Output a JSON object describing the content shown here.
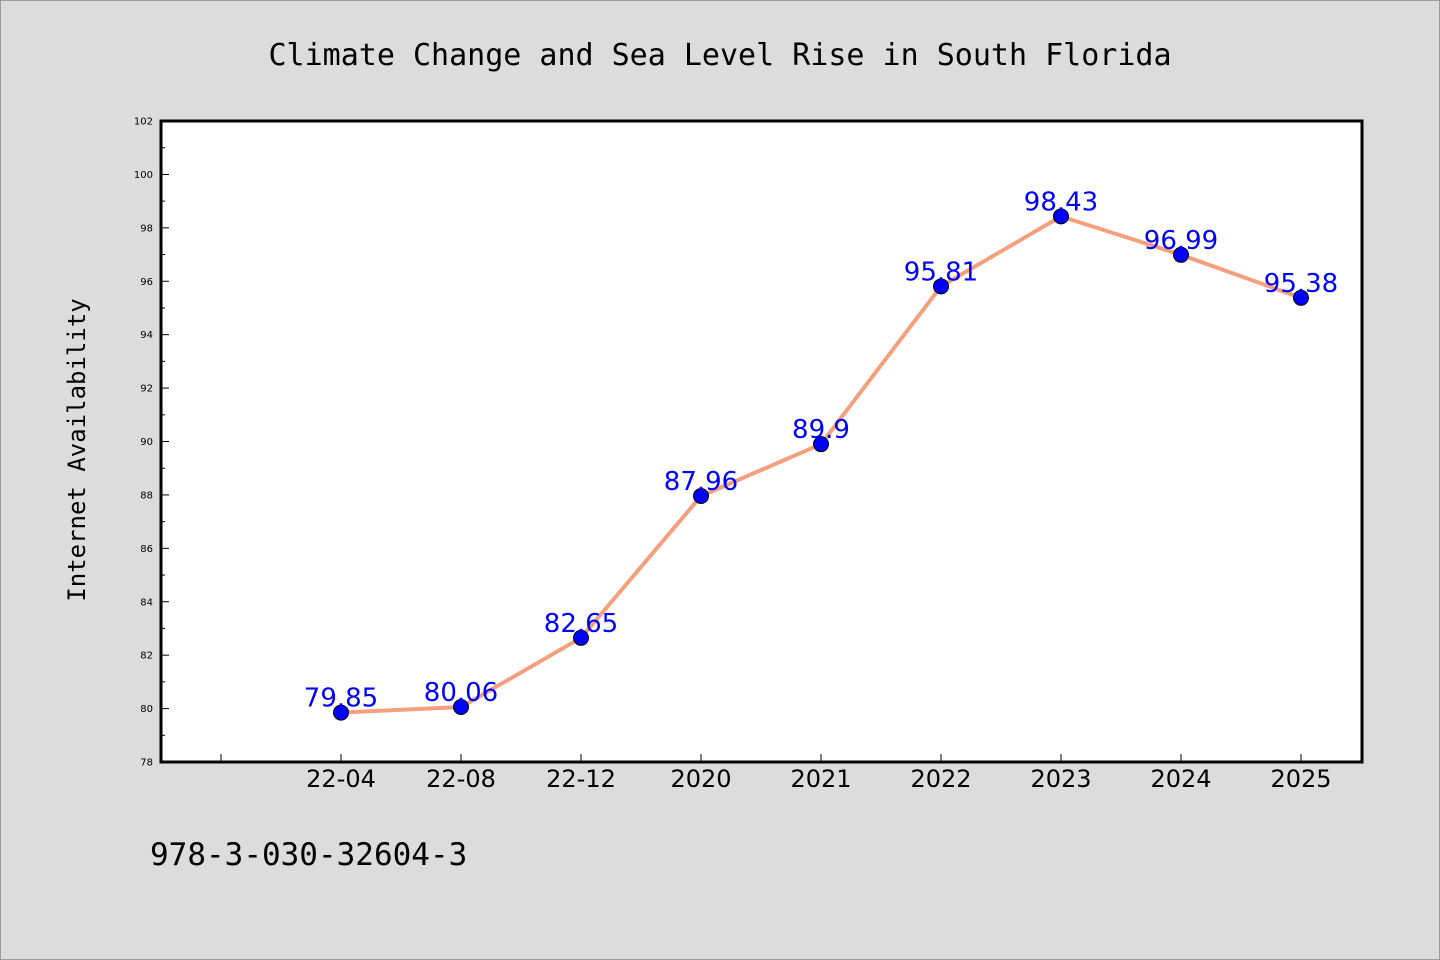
{
  "chart_data": {
    "type": "line",
    "title": "Climate Change and Sea Level Rise in South Florida",
    "xlabel": "",
    "ylabel": "Internet Availability",
    "categories": [
      "22-04",
      "22-08",
      "22-12",
      "2020",
      "2021",
      "2022",
      "2023",
      "2024",
      "2025"
    ],
    "series": [
      {
        "values": [
          79.85,
          80.06,
          82.65,
          87.96,
          89.9,
          95.81,
          98.43,
          96.99,
          95.38
        ],
        "data_labels": [
          "79.85",
          "80.06",
          "82.65",
          "87.96",
          "89.9",
          "95.81",
          "98.43",
          "96.99",
          "95.38"
        ]
      }
    ],
    "ylim": [
      78,
      102
    ],
    "yticks": [
      78,
      80,
      82,
      84,
      86,
      88,
      90,
      92,
      94,
      96,
      98,
      100,
      102
    ],
    "grid": false,
    "legend": "none",
    "colors": {
      "line": "#f4a07e",
      "marker": "#0000ff",
      "data_label": "#0000ff",
      "plot_background": "#ffffff",
      "figure_background": "#dcdcdc"
    }
  },
  "footer": {
    "isbn": "978-3-030-32604-3"
  }
}
